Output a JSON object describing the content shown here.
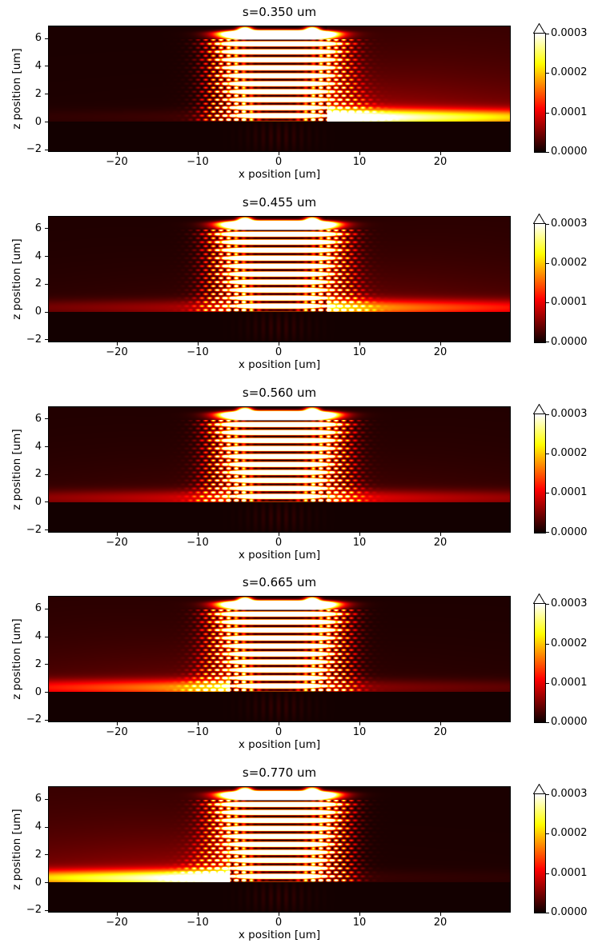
{
  "chart_data": {
    "type": "heatmap",
    "layout": "5 vertically stacked field-intensity maps sharing identical axes and colorbars",
    "xlabel": "x position [um]",
    "ylabel": "z position [um]",
    "xlim": [
      -28.5,
      28.7
    ],
    "zlim": [
      -2.2,
      6.9
    ],
    "xtick_values": [
      -20,
      -10,
      0,
      10,
      20
    ],
    "ztick_values": [
      6,
      4,
      2,
      0,
      -2
    ],
    "axes_tick_labels": {
      "x": [
        "−20",
        "−10",
        "0",
        "10",
        "20"
      ],
      "y": [
        "6",
        "4",
        "2",
        "0",
        "−2"
      ]
    },
    "colormap": "hot",
    "vmin": 0.0,
    "vmax": 0.0003,
    "colorbar_extend": "max",
    "colorbar_tick_values": [
      0.0003,
      0.0002,
      0.0001,
      0.0
    ],
    "colorbar_tick_labels": [
      "0.0003",
      "0.0002",
      "0.0001",
      "0.0000"
    ],
    "structure": {
      "description": "layered grating/Bragg stack on a substrate; standing-wave bands inside, checkerboard speckle on the flanks, bright cap on top, surface beam emitted sideways at z just above 0",
      "slab_halfwidth_um": 8.6,
      "layer_period_um": 0.575,
      "first_null_z_um": 0.125,
      "n_layers": 10,
      "cap_center_z_um": 6.3,
      "cap_hotspot_x_um": 4.15,
      "dot_spacing_x_um": 0.95,
      "dot_row_period_um": 0.2875,
      "substrate_top_z_um": 0.0
    },
    "panels": [
      {
        "title": "s=0.350 um",
        "s_um": 0.35,
        "beam_right": 1.0,
        "beam_left": 0.05,
        "emission": "right"
      },
      {
        "title": "s=0.455 um",
        "s_um": 0.455,
        "beam_right": 0.55,
        "beam_left": 0.2,
        "emission": "mostly right"
      },
      {
        "title": "s=0.560 um",
        "s_um": 0.56,
        "beam_right": 0.28,
        "beam_left": 0.26,
        "emission": "weak, both sides"
      },
      {
        "title": "s=0.665 um",
        "s_um": 0.665,
        "beam_right": 0.15,
        "beam_left": 0.55,
        "emission": "mostly left"
      },
      {
        "title": "s=0.770 um",
        "s_um": 0.77,
        "beam_right": 0.04,
        "beam_left": 1.0,
        "emission": "left"
      }
    ]
  }
}
